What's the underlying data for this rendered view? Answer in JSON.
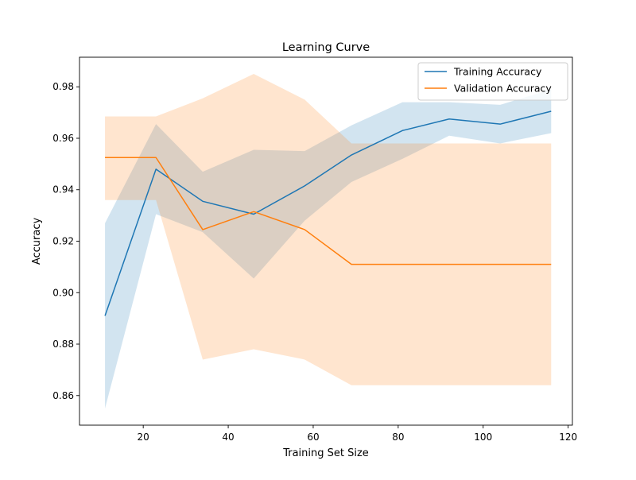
{
  "chart_data": {
    "type": "line",
    "title": "Learning Curve",
    "xlabel": "Training Set Size",
    "ylabel": "Accuracy",
    "xlim": [
      5,
      121
    ],
    "ylim": [
      0.8485,
      0.9915
    ],
    "xticks": [
      20,
      40,
      60,
      80,
      100,
      120
    ],
    "yticks": [
      0.86,
      0.88,
      0.9,
      0.92,
      0.94,
      0.96,
      0.98
    ],
    "ytick_labels": [
      "0.86",
      "0.88",
      "0.90",
      "0.92",
      "0.94",
      "0.96",
      "0.98"
    ],
    "grid": false,
    "legend_position": "top-right",
    "x": [
      11,
      23,
      34,
      46,
      58,
      69,
      81,
      92,
      104,
      116
    ],
    "series": [
      {
        "name": "Training Accuracy",
        "color": "#1f77b4",
        "values": [
          0.891,
          0.948,
          0.9355,
          0.9305,
          0.9415,
          0.9535,
          0.963,
          0.9675,
          0.9655,
          0.9705
        ],
        "band_lower": [
          0.855,
          0.9305,
          0.9235,
          0.9055,
          0.928,
          0.943,
          0.952,
          0.961,
          0.958,
          0.962
        ],
        "band_upper": [
          0.927,
          0.9655,
          0.947,
          0.9555,
          0.955,
          0.965,
          0.974,
          0.974,
          0.973,
          0.979
        ],
        "band_color": "#1f77b4",
        "band_opacity": 0.2
      },
      {
        "name": "Validation Accuracy",
        "color": "#ff7f0e",
        "values": [
          0.9525,
          0.9525,
          0.9245,
          0.9315,
          0.9245,
          0.911,
          0.911,
          0.911,
          0.911,
          0.911
        ],
        "band_lower": [
          0.936,
          0.936,
          0.874,
          0.878,
          0.874,
          0.864,
          0.864,
          0.864,
          0.864,
          0.864
        ],
        "band_upper": [
          0.9685,
          0.9685,
          0.9755,
          0.985,
          0.975,
          0.958,
          0.958,
          0.958,
          0.958,
          0.958
        ],
        "band_color": "#ff7f0e",
        "band_opacity": 0.2
      }
    ]
  }
}
